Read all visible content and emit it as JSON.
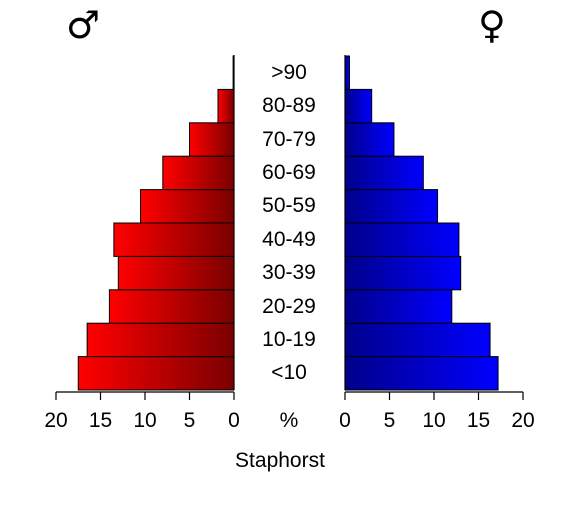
{
  "chart_data": {
    "type": "bar",
    "orientation": "horizontal",
    "layout": "population-pyramid",
    "categories": [
      "<10",
      "10-19",
      "20-29",
      "30-39",
      "40-49",
      "50-59",
      "60-69",
      "70-79",
      "80-89",
      ">90"
    ],
    "series": [
      {
        "symbol": "♂",
        "color": "#ff0000",
        "color_dark": "#7a0000",
        "values": [
          17.5,
          16.5,
          14.0,
          13.0,
          13.5,
          10.5,
          8.0,
          5.0,
          1.8,
          0.1
        ]
      },
      {
        "symbol": "♀",
        "color": "#0000ff",
        "color_dark": "#00008a",
        "values": [
          17.2,
          16.3,
          12.0,
          13.0,
          12.8,
          10.4,
          8.8,
          5.5,
          3.0,
          0.5
        ]
      }
    ],
    "xlim": [
      0,
      20
    ],
    "ticks": [
      0,
      5,
      10,
      15,
      20
    ],
    "xlabel": "%",
    "title": "Staphorst",
    "grid": false
  }
}
